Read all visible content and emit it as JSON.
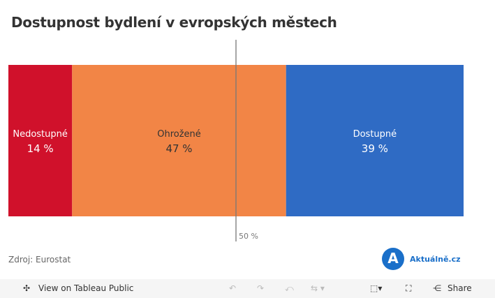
{
  "title": "Dostupnost bydlení v evropských městech",
  "chart_data": {
    "type": "bar",
    "orientation": "horizontal-stacked",
    "categories": [
      "Nedostupné",
      "Ohrožené",
      "Dostupné"
    ],
    "values": [
      14,
      47,
      39
    ],
    "value_labels": [
      "14 %",
      "47 %",
      "39 %"
    ],
    "colors": [
      "#d0112b",
      "#f28546",
      "#2f6bc4"
    ],
    "reference_line": {
      "value": 50,
      "label": "50 %"
    },
    "xlim": [
      0,
      100
    ]
  },
  "source": "Zdroj: Eurostat",
  "logo": {
    "letter": "A",
    "text": "Aktuálně.cz"
  },
  "toolbar": {
    "view": "View on Tableau Public",
    "share": "Share"
  }
}
